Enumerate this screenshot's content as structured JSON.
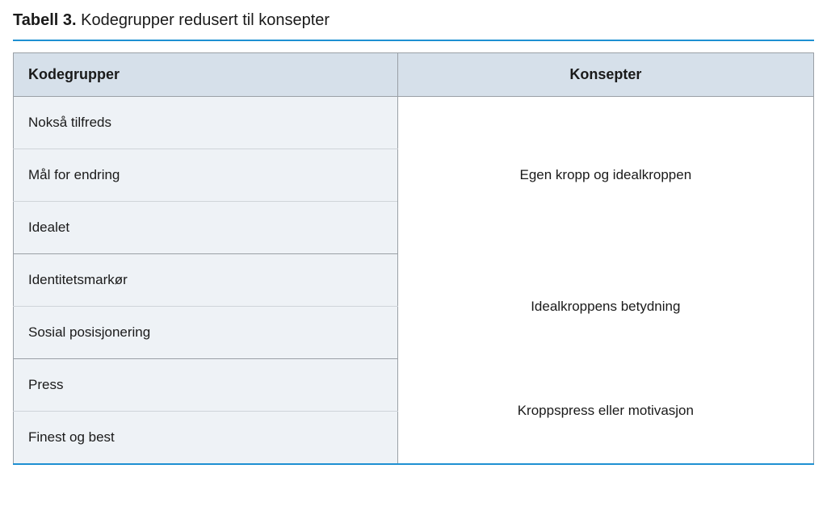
{
  "caption": {
    "number": "Tabell 3.",
    "title": "Kodegrupper redusert til konsepter"
  },
  "colors": {
    "accent": "#1e90d2",
    "header_bg": "#d6e0ea",
    "left_bg": "#eef2f6",
    "border": "#9aa0a6",
    "inner_border": "#cfd4d9",
    "text": "#1a1a1a"
  },
  "table": {
    "type": "table",
    "columns": [
      "Kodegrupper",
      "Konsepter"
    ],
    "column_widths": [
      "48%",
      "52%"
    ],
    "groups": [
      {
        "concept": "Egen kropp og idealkroppen",
        "codes": [
          "Nokså tilfreds",
          "Mål for endring",
          "Idealet"
        ]
      },
      {
        "concept": "Idealkroppens betydning",
        "codes": [
          "Identitetsmarkør",
          "Sosial posisjonering"
        ]
      },
      {
        "concept": "Kroppspress eller motivasjon",
        "codes": [
          "Press",
          "Finest og best"
        ]
      }
    ]
  },
  "typography": {
    "caption_fontsize": 20,
    "header_fontsize": 18,
    "cell_fontsize": 17
  }
}
